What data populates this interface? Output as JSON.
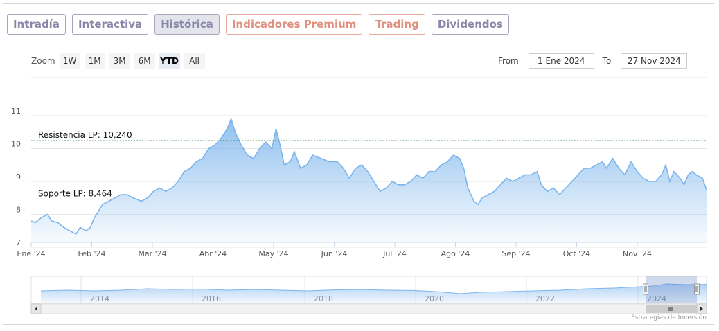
{
  "tabs": [
    {
      "label": "Intradía",
      "style": "normal"
    },
    {
      "label": "Interactiva",
      "style": "normal"
    },
    {
      "label": "Histórica",
      "style": "active"
    },
    {
      "label": "Indicadores Premium",
      "style": "salmon"
    },
    {
      "label": "Trading",
      "style": "salmon"
    },
    {
      "label": "Dividendos",
      "style": "normal"
    }
  ],
  "zoom": {
    "label": "Zoom",
    "buttons": [
      "1W",
      "1M",
      "3M",
      "6M",
      "YTD",
      "All"
    ],
    "selected": "YTD"
  },
  "range": {
    "from_label": "From",
    "from_value": "1 Ene 2024",
    "to_label": "To",
    "to_value": "27 Nov 2024"
  },
  "credit": "Estrategias de Inversión",
  "colors": {
    "line": "#7cb5ec",
    "resistance": "#2e7d32",
    "support": "#8b0000"
  },
  "chart_data": {
    "type": "area",
    "ylim": [
      7,
      11
    ],
    "yticks": [
      "7",
      "8",
      "9",
      "10",
      "11"
    ],
    "x_start": "2024-01-01",
    "x_end": "2024-11-27",
    "xtick_labels": [
      "Ene '24",
      "Feb '24",
      "Mar '24",
      "Abr '24",
      "May '24",
      "Jun '24",
      "Jul '24",
      "Ago '24",
      "Sep '24",
      "Oct '24",
      "Nov '24"
    ],
    "series": [
      {
        "points": [
          [
            "2024-01-01",
            7.8
          ],
          [
            "2024-01-03",
            7.75
          ],
          [
            "2024-01-06",
            7.9
          ],
          [
            "2024-01-09",
            8.0
          ],
          [
            "2024-01-11",
            7.8
          ],
          [
            "2024-01-14",
            7.75
          ],
          [
            "2024-01-17",
            7.6
          ],
          [
            "2024-01-20",
            7.5
          ],
          [
            "2024-01-23",
            7.4
          ],
          [
            "2024-01-25",
            7.6
          ],
          [
            "2024-01-28",
            7.5
          ],
          [
            "2024-01-30",
            7.6
          ],
          [
            "2024-02-01",
            7.9
          ],
          [
            "2024-02-03",
            8.1
          ],
          [
            "2024-02-05",
            8.3
          ],
          [
            "2024-02-08",
            8.4
          ],
          [
            "2024-02-11",
            8.5
          ],
          [
            "2024-02-14",
            8.6
          ],
          [
            "2024-02-17",
            8.6
          ],
          [
            "2024-02-20",
            8.5
          ],
          [
            "2024-02-24",
            8.4
          ],
          [
            "2024-02-27",
            8.5
          ],
          [
            "2024-03-01",
            8.7
          ],
          [
            "2024-03-04",
            8.8
          ],
          [
            "2024-03-07",
            8.7
          ],
          [
            "2024-03-10",
            8.8
          ],
          [
            "2024-03-13",
            9.0
          ],
          [
            "2024-03-16",
            9.3
          ],
          [
            "2024-03-19",
            9.4
          ],
          [
            "2024-03-22",
            9.6
          ],
          [
            "2024-03-25",
            9.7
          ],
          [
            "2024-03-28",
            10.0
          ],
          [
            "2024-03-31",
            10.1
          ],
          [
            "2024-04-03",
            10.3
          ],
          [
            "2024-04-06",
            10.6
          ],
          [
            "2024-04-08",
            10.9
          ],
          [
            "2024-04-10",
            10.5
          ],
          [
            "2024-04-13",
            10.1
          ],
          [
            "2024-04-16",
            9.8
          ],
          [
            "2024-04-19",
            9.7
          ],
          [
            "2024-04-22",
            10.0
          ],
          [
            "2024-04-25",
            10.2
          ],
          [
            "2024-04-28",
            10.0
          ],
          [
            "2024-04-30",
            10.6
          ],
          [
            "2024-05-02",
            10.1
          ],
          [
            "2024-05-04",
            9.5
          ],
          [
            "2024-05-07",
            9.6
          ],
          [
            "2024-05-09",
            9.9
          ],
          [
            "2024-05-12",
            9.4
          ],
          [
            "2024-05-15",
            9.5
          ],
          [
            "2024-05-18",
            9.8
          ],
          [
            "2024-05-22",
            9.7
          ],
          [
            "2024-05-26",
            9.6
          ],
          [
            "2024-05-30",
            9.6
          ],
          [
            "2024-06-02",
            9.4
          ],
          [
            "2024-06-05",
            9.1
          ],
          [
            "2024-06-08",
            9.4
          ],
          [
            "2024-06-11",
            9.5
          ],
          [
            "2024-06-14",
            9.3
          ],
          [
            "2024-06-17",
            9.0
          ],
          [
            "2024-06-20",
            8.7
          ],
          [
            "2024-06-23",
            8.8
          ],
          [
            "2024-06-26",
            9.0
          ],
          [
            "2024-06-29",
            8.9
          ],
          [
            "2024-07-02",
            8.9
          ],
          [
            "2024-07-05",
            9.0
          ],
          [
            "2024-07-08",
            9.2
          ],
          [
            "2024-07-11",
            9.1
          ],
          [
            "2024-07-14",
            9.3
          ],
          [
            "2024-07-17",
            9.3
          ],
          [
            "2024-07-20",
            9.5
          ],
          [
            "2024-07-23",
            9.6
          ],
          [
            "2024-07-26",
            9.8
          ],
          [
            "2024-07-29",
            9.7
          ],
          [
            "2024-07-31",
            9.4
          ],
          [
            "2024-08-02",
            8.8
          ],
          [
            "2024-08-05",
            8.4
          ],
          [
            "2024-08-07",
            8.3
          ],
          [
            "2024-08-09",
            8.5
          ],
          [
            "2024-08-12",
            8.6
          ],
          [
            "2024-08-15",
            8.7
          ],
          [
            "2024-08-18",
            8.9
          ],
          [
            "2024-08-21",
            9.1
          ],
          [
            "2024-08-24",
            9.0
          ],
          [
            "2024-08-27",
            9.1
          ],
          [
            "2024-08-30",
            9.2
          ],
          [
            "2024-09-02",
            9.2
          ],
          [
            "2024-09-05",
            9.3
          ],
          [
            "2024-09-07",
            8.9
          ],
          [
            "2024-09-10",
            8.7
          ],
          [
            "2024-09-13",
            8.8
          ],
          [
            "2024-09-16",
            8.6
          ],
          [
            "2024-09-19",
            8.8
          ],
          [
            "2024-09-22",
            9.0
          ],
          [
            "2024-09-25",
            9.2
          ],
          [
            "2024-09-28",
            9.4
          ],
          [
            "2024-10-01",
            9.4
          ],
          [
            "2024-10-04",
            9.5
          ],
          [
            "2024-10-07",
            9.6
          ],
          [
            "2024-10-09",
            9.4
          ],
          [
            "2024-10-12",
            9.7
          ],
          [
            "2024-10-15",
            9.4
          ],
          [
            "2024-10-18",
            9.2
          ],
          [
            "2024-10-21",
            9.6
          ],
          [
            "2024-10-24",
            9.3
          ],
          [
            "2024-10-27",
            9.1
          ],
          [
            "2024-10-30",
            9.0
          ],
          [
            "2024-11-02",
            9.0
          ],
          [
            "2024-11-05",
            9.2
          ],
          [
            "2024-11-07",
            9.5
          ],
          [
            "2024-11-09",
            9.0
          ],
          [
            "2024-11-11",
            9.3
          ],
          [
            "2024-11-14",
            9.1
          ],
          [
            "2024-11-16",
            8.9
          ],
          [
            "2024-11-18",
            9.2
          ],
          [
            "2024-11-20",
            9.3
          ],
          [
            "2024-11-22",
            9.2
          ],
          [
            "2024-11-25",
            9.1
          ],
          [
            "2024-11-27",
            8.75
          ]
        ]
      }
    ],
    "reference_lines": [
      {
        "label": "Resistencia LP: 10,240",
        "value": 10.24,
        "style": "dashed"
      },
      {
        "label": "Soporte LP: 8,464",
        "value": 8.464,
        "style": "dashed"
      }
    ],
    "navigator": {
      "year_labels": [
        "2014",
        "2016",
        "2018",
        "2020",
        "2022",
        "2024"
      ],
      "selected_range": [
        "2024-01-01",
        "2024-11-27"
      ]
    }
  }
}
